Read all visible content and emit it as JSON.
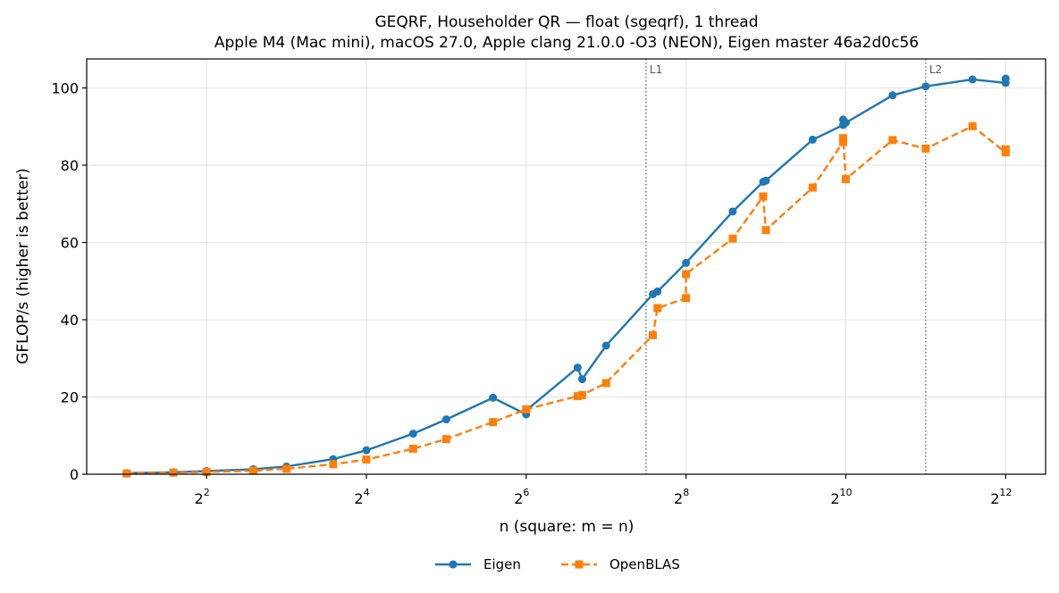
{
  "chart_data": {
    "type": "line",
    "title": "GEQRF, Householder QR — float (sgeqrf), 1 thread",
    "subtitle": "Apple M4 (Mac mini), macOS 27.0, Apple clang 21.0.0 -O3 (NEON), Eigen master 46a2d0c56",
    "xlabel": "n (square: m = n)",
    "ylabel": "GFLOP/s (higher is better)",
    "xscale": "log2",
    "xlim": [
      1.414,
      5792.6
    ],
    "ylim": [
      0,
      107.5
    ],
    "xticks": [
      {
        "base": "2",
        "exp": "2",
        "value": 4
      },
      {
        "base": "2",
        "exp": "4",
        "value": 16
      },
      {
        "base": "2",
        "exp": "6",
        "value": 64
      },
      {
        "base": "2",
        "exp": "8",
        "value": 256
      },
      {
        "base": "2",
        "exp": "10",
        "value": 1024
      },
      {
        "base": "2",
        "exp": "12",
        "value": 4096
      }
    ],
    "yticks": [
      0,
      20,
      40,
      60,
      80,
      100
    ],
    "grid": true,
    "legend_position": "bottom-center",
    "annotations": [
      {
        "label": "L1",
        "x": 181
      },
      {
        "label": "L2",
        "x": 2048
      }
    ],
    "series": [
      {
        "name": "Eigen",
        "color": "#1f77b4",
        "marker": "circle",
        "linestyle": "solid",
        "x": [
          2,
          3,
          4,
          6,
          8,
          12,
          16,
          24,
          32,
          48,
          64,
          64,
          100,
          104,
          128,
          192,
          200,
          256,
          384,
          500,
          512,
          768,
          1000,
          1000,
          1024,
          1536,
          2048,
          3072,
          4096,
          4096
        ],
        "y": [
          0.3,
          0.5,
          0.8,
          1.3,
          2.0,
          3.9,
          6.2,
          10.5,
          14.2,
          19.8,
          15.5,
          16.5,
          27.6,
          24.6,
          33.3,
          46.6,
          47.3,
          54.7,
          68.0,
          75.7,
          76.0,
          86.6,
          90.4,
          91.8,
          91.0,
          98.1,
          100.4,
          102.2,
          101.3,
          102.4
        ]
      },
      {
        "name": "OpenBLAS",
        "color": "#ff7f0e",
        "marker": "square",
        "linestyle": "dashed",
        "x": [
          2,
          3,
          4,
          6,
          8,
          12,
          16,
          24,
          32,
          48,
          64,
          100,
          104,
          128,
          192,
          200,
          256,
          256,
          384,
          500,
          512,
          768,
          1000,
          1000,
          1024,
          1536,
          2048,
          3072,
          4096,
          4096
        ],
        "y": [
          0.2,
          0.4,
          0.6,
          0.9,
          1.4,
          2.6,
          3.8,
          6.6,
          9.1,
          13.5,
          16.8,
          20.2,
          20.5,
          23.6,
          36.0,
          43.0,
          45.6,
          51.8,
          61.0,
          71.9,
          63.2,
          74.2,
          86.0,
          87.0,
          76.4,
          86.5,
          84.3,
          90.1,
          83.3,
          84.1
        ]
      }
    ]
  }
}
